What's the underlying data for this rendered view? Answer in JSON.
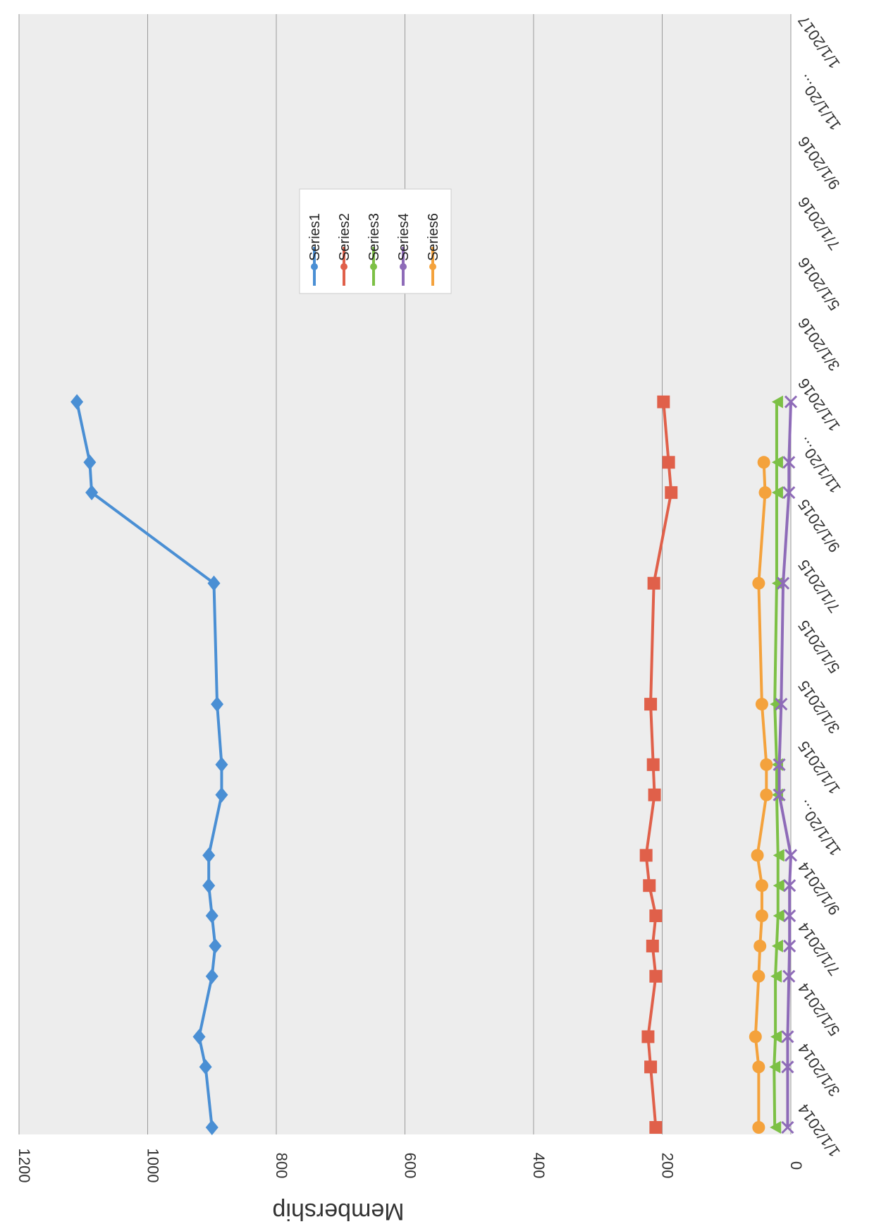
{
  "chart_data": {
    "type": "line",
    "orientation": "rotated 90 degrees (page scanned sideways)",
    "title": "",
    "xlabel": "",
    "ylabel": "Membership",
    "ylim": [
      0,
      1200
    ],
    "yticks": [
      0,
      200,
      400,
      600,
      800,
      1000,
      1200
    ],
    "grid": true,
    "legend_position": "top-right",
    "x_tick_labels": [
      "1/1/2014",
      "3/1/2014",
      "5/1/2014",
      "7/1/2014",
      "9/1/2014",
      "11/1/20...",
      "1/1/2015",
      "3/1/2015",
      "5/1/2015",
      "7/1/2015",
      "9/1/2015",
      "11/1/20...",
      "1/1/2016",
      "3/1/2016",
      "5/1/2016",
      "7/1/2016",
      "9/1/2016",
      "11/1/20...",
      "1/1/2017"
    ],
    "x": [
      "1/1/2014",
      "3/1/2014",
      "4/1/2014",
      "6/1/2014",
      "7/1/2014",
      "8/1/2014",
      "9/1/2014",
      "10/1/2014",
      "12/1/2014",
      "1/1/2015",
      "3/1/2015",
      "5/1/2015",
      "6/1/2015",
      "7/1/2015",
      "8/1/2015",
      "10/1/2015",
      "11/1/2015",
      "1/1/2016",
      "2/1/2016"
    ],
    "series": [
      {
        "name": "Series1",
        "color": "#4a8fd4",
        "marker": "diamond",
        "points": [
          [
            "1/1/2014",
            900
          ],
          [
            "3/1/2014",
            910
          ],
          [
            "4/1/2014",
            920
          ],
          [
            "6/1/2014",
            900
          ],
          [
            "7/1/2014",
            895
          ],
          [
            "8/1/2014",
            900
          ],
          [
            "9/1/2014",
            905
          ],
          [
            "10/1/2014",
            905
          ],
          [
            "12/1/2014",
            885
          ],
          [
            "1/1/2015",
            885
          ],
          [
            "3/1/2015",
            892
          ],
          [
            "7/1/2015",
            897
          ],
          [
            "10/1/2015",
            1087
          ],
          [
            "11/1/2015",
            1090
          ],
          [
            "1/1/2016",
            1110
          ]
        ]
      },
      {
        "name": "Series2",
        "color": "#e0604a",
        "marker": "square",
        "points": [
          [
            "1/1/2014",
            210
          ],
          [
            "3/1/2014",
            218
          ],
          [
            "4/1/2014",
            222
          ],
          [
            "6/1/2014",
            210
          ],
          [
            "7/1/2014",
            215
          ],
          [
            "8/1/2014",
            210
          ],
          [
            "9/1/2014",
            220
          ],
          [
            "10/1/2014",
            225
          ],
          [
            "12/1/2014",
            212
          ],
          [
            "1/1/2015",
            214
          ],
          [
            "3/1/2015",
            218
          ],
          [
            "7/1/2015",
            213
          ],
          [
            "10/1/2015",
            186
          ],
          [
            "11/1/2015",
            190
          ],
          [
            "1/1/2016",
            198
          ]
        ]
      },
      {
        "name": "Series3",
        "color": "#7cc045",
        "marker": "triangle",
        "points": [
          [
            "1/1/2014",
            25
          ],
          [
            "3/1/2014",
            26
          ],
          [
            "4/1/2014",
            24
          ],
          [
            "6/1/2014",
            24
          ],
          [
            "7/1/2014",
            22
          ],
          [
            "8/1/2014",
            20
          ],
          [
            "9/1/2014",
            20
          ],
          [
            "10/1/2014",
            20
          ],
          [
            "12/1/2014",
            22
          ],
          [
            "1/1/2015",
            22
          ],
          [
            "3/1/2015",
            25
          ],
          [
            "7/1/2015",
            22
          ],
          [
            "10/1/2015",
            22
          ],
          [
            "11/1/2015",
            22
          ],
          [
            "1/1/2016",
            22
          ]
        ]
      },
      {
        "name": "Series4",
        "color": "#8e6bb8",
        "marker": "x",
        "points": [
          [
            "1/1/2014",
            5
          ],
          [
            "3/1/2014",
            5
          ],
          [
            "4/1/2014",
            5
          ],
          [
            "6/1/2014",
            3
          ],
          [
            "7/1/2014",
            2
          ],
          [
            "8/1/2014",
            2
          ],
          [
            "9/1/2014",
            2
          ],
          [
            "10/1/2014",
            0
          ],
          [
            "12/1/2014",
            18
          ],
          [
            "1/1/2015",
            18
          ],
          [
            "3/1/2015",
            15
          ],
          [
            "7/1/2015",
            12
          ],
          [
            "10/1/2015",
            3
          ],
          [
            "11/1/2015",
            3
          ],
          [
            "1/1/2016",
            0
          ]
        ]
      },
      {
        "name": "Series6",
        "color": "#f4a23c",
        "marker": "circle",
        "points": [
          [
            "1/1/2014",
            50
          ],
          [
            "3/1/2014",
            50
          ],
          [
            "4/1/2014",
            55
          ],
          [
            "6/1/2014",
            50
          ],
          [
            "7/1/2014",
            48
          ],
          [
            "8/1/2014",
            45
          ],
          [
            "9/1/2014",
            45
          ],
          [
            "10/1/2014",
            52
          ],
          [
            "12/1/2014",
            38
          ],
          [
            "1/1/2015",
            38
          ],
          [
            "3/1/2015",
            45
          ],
          [
            "7/1/2015",
            50
          ],
          [
            "10/1/2015",
            40
          ],
          [
            "11/1/2015",
            42
          ]
        ]
      }
    ]
  }
}
